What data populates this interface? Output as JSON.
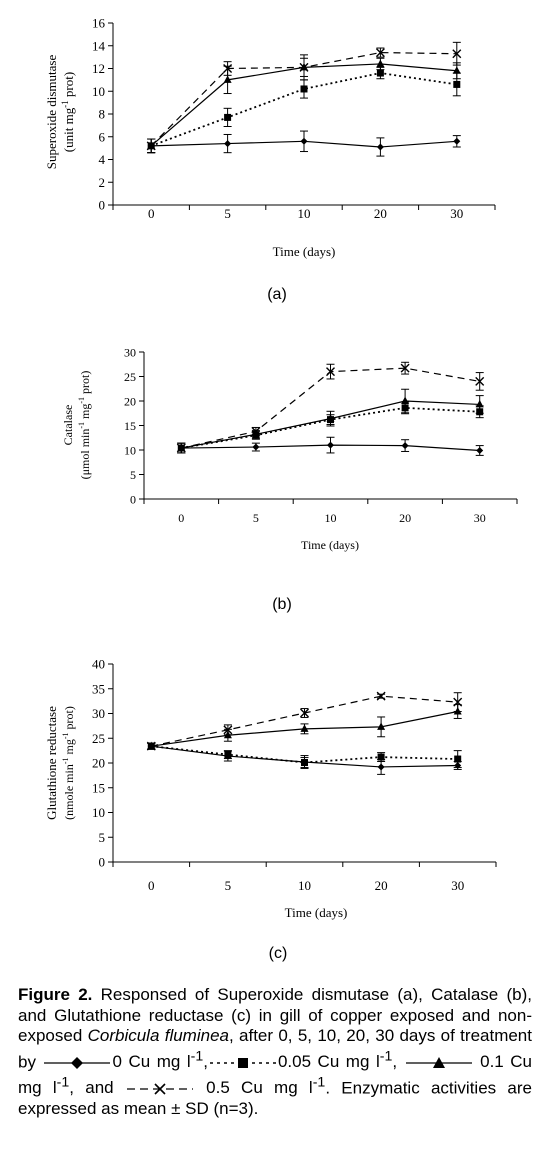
{
  "chart_data": [
    {
      "type": "line",
      "panel_label": "(a)",
      "ylabel": [
        "Superoxide dismutase",
        "(unit mg",
        "-1",
        " prot)"
      ],
      "xlabel": "Time (days)",
      "categories": [
        "0",
        "5",
        "10",
        "20",
        "30"
      ],
      "ylim": [
        0,
        16
      ],
      "yticks": [
        "0",
        "2",
        "4",
        "6",
        "8",
        "10",
        "12",
        "14",
        "16"
      ],
      "series": [
        {
          "key": "c0",
          "values": [
            5.2,
            5.4,
            5.6,
            5.1,
            5.6
          ],
          "errors": [
            0.6,
            0.8,
            0.9,
            0.8,
            0.5
          ]
        },
        {
          "key": "c005",
          "values": [
            5.2,
            7.7,
            10.2,
            11.6,
            10.6
          ],
          "errors": [
            0.6,
            0.8,
            0.8,
            0.5,
            1.0
          ]
        },
        {
          "key": "c01",
          "values": [
            5.2,
            11.0,
            12.1,
            12.4,
            11.8
          ],
          "errors": [
            0.6,
            1.2,
            0.8,
            0.5,
            0.7
          ]
        },
        {
          "key": "c05",
          "values": [
            5.2,
            12.0,
            12.1,
            13.4,
            13.3
          ],
          "errors": [
            0.6,
            0.6,
            1.1,
            0.4,
            1.0
          ]
        }
      ]
    },
    {
      "type": "line",
      "panel_label": "(b)",
      "ylabel": [
        "Catalase",
        "(μmol min",
        "-1",
        " mg",
        "-1",
        " prot)"
      ],
      "xlabel": "Time (days)",
      "categories": [
        "0",
        "5",
        "10",
        "20",
        "30"
      ],
      "ylim": [
        0,
        30
      ],
      "yticks": [
        "0",
        "5",
        "10",
        "15",
        "20",
        "25",
        "30"
      ],
      "series": [
        {
          "key": "c0",
          "values": [
            10.4,
            10.6,
            11.0,
            10.9,
            9.9
          ],
          "errors": [
            1.0,
            0.8,
            1.6,
            1.2,
            1.0
          ]
        },
        {
          "key": "c005",
          "values": [
            10.4,
            13.0,
            16.2,
            18.6,
            17.8
          ],
          "errors": [
            1.0,
            0.8,
            1.0,
            1.2,
            1.2
          ]
        },
        {
          "key": "c01",
          "values": [
            10.4,
            13.2,
            16.4,
            20.0,
            19.3
          ],
          "errors": [
            1.0,
            0.8,
            1.5,
            2.4,
            1.8
          ]
        },
        {
          "key": "c05",
          "values": [
            10.4,
            13.8,
            26.0,
            26.7,
            24.0
          ],
          "errors": [
            1.0,
            0.8,
            1.5,
            1.2,
            1.8
          ]
        }
      ]
    },
    {
      "type": "line",
      "panel_label": "(c)",
      "ylabel": [
        "Glutathione reductase",
        "(nmole min",
        "-1",
        " mg",
        "-1",
        " prot)"
      ],
      "xlabel": "Time (days)",
      "categories": [
        "0",
        "5",
        "10",
        "20",
        "30"
      ],
      "ylim": [
        0,
        40
      ],
      "yticks": [
        "0",
        "5",
        "10",
        "15",
        "20",
        "25",
        "30",
        "35",
        "40"
      ],
      "series": [
        {
          "key": "c0",
          "values": [
            23.4,
            21.4,
            20.2,
            19.2,
            19.5
          ],
          "errors": [
            0.6,
            1.0,
            1.3,
            1.5,
            0.8
          ]
        },
        {
          "key": "c005",
          "values": [
            23.4,
            21.7,
            20.1,
            21.2,
            20.8
          ],
          "errors": [
            0.6,
            0.8,
            1.0,
            0.9,
            1.7
          ]
        },
        {
          "key": "c01",
          "values": [
            23.4,
            25.6,
            26.9,
            27.3,
            30.4
          ],
          "errors": [
            0.6,
            1.2,
            1.0,
            2.0,
            1.4
          ]
        },
        {
          "key": "c05",
          "values": [
            23.4,
            26.7,
            30.1,
            33.5,
            32.3
          ],
          "errors": [
            0.6,
            1.0,
            0.9,
            0.4,
            1.9
          ]
        }
      ]
    }
  ],
  "caption": {
    "lead": "Figure 2.",
    "p1": " Responsed of Superoxide dismutase (a), Catalase (b), and Glutathione reductase (c) in gill of copper exposed and non- exposed ",
    "species": "Corbicula fluminea",
    "p2": ", after 0, 5, 10, 20, 30 days of treatment by ",
    "l0": "0 Cu mg l",
    "l005": "0.05 Cu mg l",
    "l01": "0.1 Cu mg l",
    "sep_and": ", and",
    "l05": "0.5 Cu mg l",
    "sup": "-1",
    "comma": ",",
    "tail": ". Enzymatic activities are expressed as mean ± SD (n=3)."
  }
}
